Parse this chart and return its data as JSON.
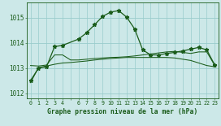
{
  "title": "Graphe pression niveau de la mer (hPa)",
  "bg_color": "#cce8e8",
  "grid_color": "#99cccc",
  "line_color": "#1a5c1a",
  "x_ticks": [
    0,
    1,
    2,
    3,
    4,
    5,
    6,
    7,
    8,
    9,
    10,
    11,
    12,
    13,
    14,
    15,
    16,
    17,
    18,
    19,
    20,
    21,
    22,
    23
  ],
  "x_labels": [
    "0",
    "1",
    "2",
    "3",
    "4",
    "",
    "6",
    "7",
    "8",
    "9",
    "10",
    "11",
    "12",
    "13",
    "14",
    "15",
    "16",
    "17",
    "18",
    "19",
    "20",
    "21",
    "22",
    "23"
  ],
  "ylim": [
    1011.8,
    1015.6
  ],
  "yticks": [
    1012,
    1013,
    1014,
    1015
  ],
  "series1_x": [
    0,
    1,
    2,
    3,
    4,
    6,
    7,
    8,
    9,
    10,
    11,
    12,
    13,
    14,
    15,
    16,
    17,
    18,
    19,
    20,
    21,
    22,
    23
  ],
  "series1_y": [
    1012.5,
    1013.0,
    1013.05,
    1013.85,
    1013.9,
    1014.15,
    1014.4,
    1014.72,
    1015.05,
    1015.22,
    1015.28,
    1015.02,
    1014.55,
    1013.72,
    1013.52,
    1013.52,
    1013.58,
    1013.62,
    1013.68,
    1013.75,
    1013.82,
    1013.72,
    1013.12
  ],
  "series2_x": [
    0,
    1,
    2,
    3,
    4,
    5,
    6,
    7,
    8,
    9,
    10,
    11,
    12,
    13,
    14,
    15,
    16,
    17,
    18,
    19,
    20,
    21,
    22,
    23
  ],
  "series2_y": [
    1013.1,
    1013.08,
    1013.12,
    1013.52,
    1013.52,
    1013.32,
    1013.32,
    1013.35,
    1013.38,
    1013.4,
    1013.42,
    1013.43,
    1013.45,
    1013.48,
    1013.52,
    1013.56,
    1013.6,
    1013.64,
    1013.66,
    1013.62,
    1013.58,
    1013.64,
    1013.64,
    1013.1
  ],
  "series3_x": [
    0,
    1,
    2,
    3,
    4,
    5,
    6,
    7,
    8,
    9,
    10,
    11,
    12,
    13,
    14,
    15,
    16,
    17,
    18,
    19,
    20,
    21,
    22,
    23
  ],
  "series3_y": [
    1012.42,
    1013.02,
    1013.08,
    1013.15,
    1013.2,
    1013.22,
    1013.25,
    1013.28,
    1013.32,
    1013.35,
    1013.38,
    1013.4,
    1013.42,
    1013.42,
    1013.42,
    1013.42,
    1013.42,
    1013.42,
    1013.4,
    1013.35,
    1013.3,
    1013.2,
    1013.1,
    1013.05
  ]
}
